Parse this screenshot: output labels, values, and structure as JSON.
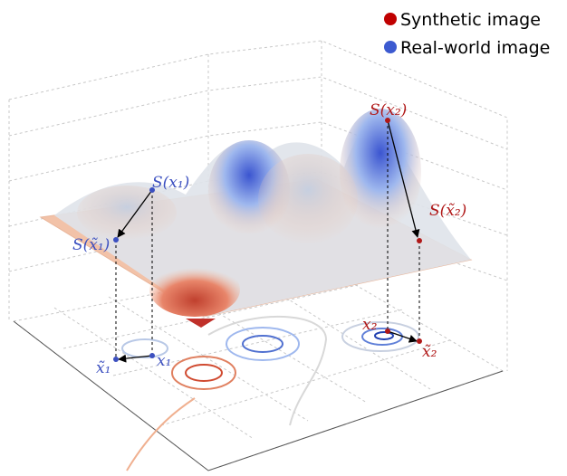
{
  "legend": {
    "items": [
      {
        "label": "Synthetic image"
      },
      {
        "label": "Real-world image"
      }
    ]
  },
  "annotations": {
    "real_surface": "S(x₁)",
    "real_surface_aug": "S(x̃₁)",
    "real_point": "x₁",
    "real_point_aug": "x̃₁",
    "syn_surface": "S(x₂)",
    "syn_surface_aug": "S(x̃₂)",
    "syn_point": "x₂",
    "syn_point_aug": "x̃₂"
  }
}
